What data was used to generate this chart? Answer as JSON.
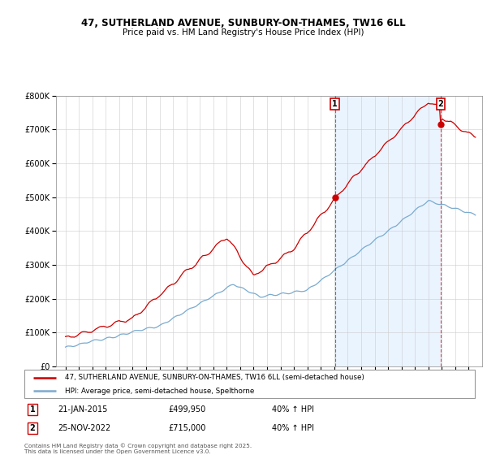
{
  "title1": "47, SUTHERLAND AVENUE, SUNBURY-ON-THAMES, TW16 6LL",
  "title2": "Price paid vs. HM Land Registry's House Price Index (HPI)",
  "legend_line1": "47, SUTHERLAND AVENUE, SUNBURY-ON-THAMES, TW16 6LL (semi-detached house)",
  "legend_line2": "HPI: Average price, semi-detached house, Spelthorne",
  "marker1_date": "21-JAN-2015",
  "marker1_price": "£499,950",
  "marker1_hpi": "40% ↑ HPI",
  "marker2_date": "25-NOV-2022",
  "marker2_price": "£715,000",
  "marker2_hpi": "40% ↑ HPI",
  "footer": "Contains HM Land Registry data © Crown copyright and database right 2025.\nThis data is licensed under the Open Government Licence v3.0.",
  "red_color": "#cc0000",
  "blue_color": "#7aabcf",
  "shade_color": "#ddeeff",
  "dashed_color": "#cc0000",
  "ylim": [
    0,
    800000
  ],
  "yticks": [
    0,
    100000,
    200000,
    300000,
    400000,
    500000,
    600000,
    700000,
    800000
  ],
  "ytick_labels": [
    "£0",
    "£100K",
    "£200K",
    "£300K",
    "£400K",
    "£500K",
    "£600K",
    "£700K",
    "£800K"
  ]
}
